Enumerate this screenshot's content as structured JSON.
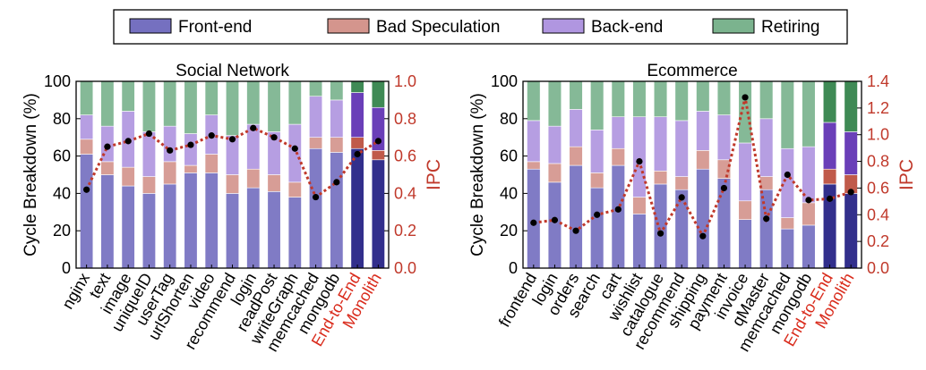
{
  "legend": {
    "placement": "top-center",
    "entries": [
      {
        "label": "Front-end",
        "color": "#7570c0"
      },
      {
        "label": "Bad Speculation",
        "color": "#d4958d"
      },
      {
        "label": "Back-end",
        "color": "#b096e0"
      },
      {
        "label": "Retiring",
        "color": "#7bb38e"
      }
    ]
  },
  "colors": {
    "highlight_front": "#322f8c",
    "highlight_bad": "#c05a4a",
    "highlight_back": "#6a3fb8",
    "highlight_retiring": "#3f8a55",
    "ipc": "#c0392b",
    "ipc_point": "#000000",
    "highlight_label": "#d92b1c"
  },
  "chart_data": [
    {
      "type": "bar",
      "stacked": true,
      "title": "Social Network",
      "xlabel": "",
      "ylabel": "Cycle Breakdown (%)",
      "ylim": [
        0,
        100
      ],
      "yticks": [
        0,
        20,
        40,
        60,
        80,
        100
      ],
      "y2label": "IPC",
      "y2lim": [
        0.0,
        1.0
      ],
      "y2ticks": [
        "0.0",
        "0.2",
        "0.4",
        "0.6",
        "0.8",
        "1.0"
      ],
      "grid": false,
      "categories": [
        "nginx",
        "text",
        "image",
        "uniqueID",
        "userTag",
        "urlShorten",
        "video",
        "recommend",
        "login",
        "readPost",
        "writeGraph",
        "memcached",
        "mongodb",
        "End-to-End",
        "Monolith"
      ],
      "highlighted": [
        "End-to-End",
        "Monolith"
      ],
      "series": [
        {
          "name": "Front-end",
          "values": [
            61,
            50,
            44,
            40,
            45,
            51,
            51,
            40,
            43,
            41,
            38,
            64,
            62,
            64,
            58
          ]
        },
        {
          "name": "Bad Speculation",
          "values": [
            8,
            7,
            10,
            9,
            12,
            4,
            10,
            10,
            10,
            9,
            8,
            6,
            8,
            6,
            5
          ]
        },
        {
          "name": "Back-end",
          "values": [
            13,
            19,
            30,
            24,
            19,
            17,
            21,
            21,
            24,
            23,
            31,
            22,
            20,
            24,
            23
          ]
        },
        {
          "name": "Retiring",
          "values": [
            18,
            24,
            16,
            27,
            24,
            28,
            18,
            29,
            23,
            27,
            23,
            8,
            10,
            6,
            14
          ]
        }
      ],
      "ipc": {
        "name": "IPC",
        "values": [
          0.42,
          0.65,
          0.68,
          0.72,
          0.63,
          0.66,
          0.71,
          0.69,
          0.75,
          0.7,
          0.64,
          0.38,
          0.46,
          0.61,
          0.68
        ]
      }
    },
    {
      "type": "bar",
      "stacked": true,
      "title": "Ecommerce",
      "xlabel": "",
      "ylabel": "Cycle Breakdown (%)",
      "ylim": [
        0,
        100
      ],
      "yticks": [
        0,
        20,
        40,
        60,
        80,
        100
      ],
      "y2label": "IPC",
      "y2lim": [
        0.0,
        1.4
      ],
      "y2ticks": [
        "0.0",
        "0.2",
        "0.4",
        "0.6",
        "0.8",
        "1.0",
        "1.2",
        "1.4"
      ],
      "grid": false,
      "categories": [
        "frontend",
        "login",
        "orders",
        "search",
        "cart",
        "wishlist",
        "catalogue",
        "recommend",
        "shipping",
        "payment",
        "invoice",
        "qMaster",
        "memcached",
        "mongodb",
        "End-to-End",
        "Monolith"
      ],
      "highlighted": [
        "End-to-End",
        "Monolith"
      ],
      "series": [
        {
          "name": "Front-end",
          "values": [
            53,
            46,
            55,
            43,
            55,
            29,
            45,
            42,
            53,
            48,
            26,
            42,
            21,
            23,
            45,
            40
          ]
        },
        {
          "name": "Bad Speculation",
          "values": [
            4,
            10,
            10,
            8,
            9,
            9,
            7,
            7,
            10,
            10,
            10,
            7,
            6,
            12,
            8,
            10
          ]
        },
        {
          "name": "Back-end",
          "values": [
            22,
            20,
            20,
            23,
            17,
            43,
            29,
            30,
            21,
            24,
            31,
            31,
            37,
            30,
            25,
            23
          ]
        },
        {
          "name": "Retiring",
          "values": [
            21,
            24,
            15,
            26,
            19,
            19,
            19,
            21,
            16,
            18,
            33,
            20,
            36,
            35,
            22,
            27
          ]
        }
      ],
      "ipc": {
        "name": "IPC",
        "values": [
          0.34,
          0.36,
          0.28,
          0.4,
          0.44,
          0.8,
          0.26,
          0.53,
          0.24,
          0.6,
          1.28,
          0.37,
          0.7,
          0.51,
          0.52,
          0.57
        ]
      }
    }
  ]
}
